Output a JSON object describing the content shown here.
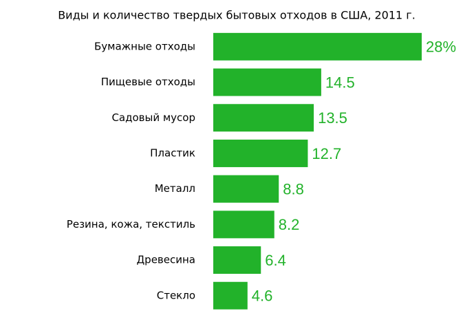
{
  "chart_data": {
    "type": "bar",
    "orientation": "horizontal",
    "title": "Виды и количество твердых бытовых отходов в США, 2011 г.",
    "categories": [
      "Бумажные отходы",
      "Пищевые отходы",
      "Садовый мусор",
      "Пластик",
      "Металл",
      "Резина, кожа, текстиль",
      "Древесина",
      "Стекло"
    ],
    "values": [
      28,
      14.5,
      13.5,
      12.7,
      8.8,
      8.2,
      6.4,
      4.6
    ],
    "value_labels": [
      "28%",
      "14.5",
      "13.5",
      "12.7",
      "8.8",
      "8.2",
      "6.4",
      "4.6"
    ],
    "color": "#22b22a"
  }
}
